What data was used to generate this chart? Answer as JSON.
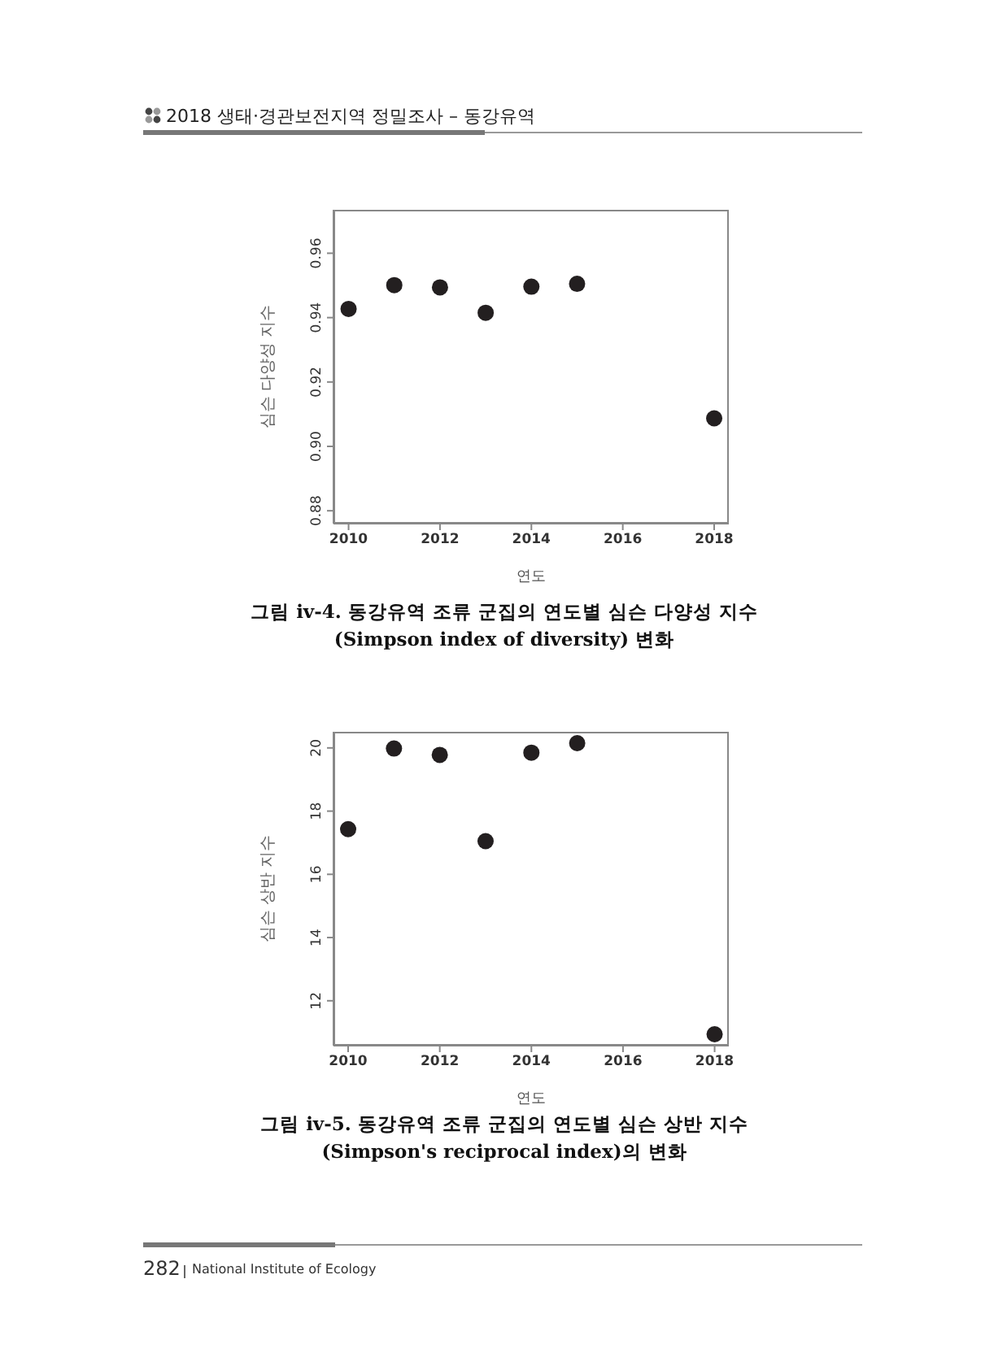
{
  "chart_data": [
    {
      "type": "scatter",
      "title": "그림 iv-4. 동강유역 조류 군집의 연도별 심슨 다양성 지수\n(Simpson index of diversity) 변화",
      "xlabel": "연도",
      "ylabel": "심슨 다양성 지수",
      "annotations": [
        "2018 생태·경관보전지역 정밀조사 – 동강유역"
      ],
      "x": [
        2010,
        2011,
        2012,
        2013,
        2014,
        2015,
        2018
      ],
      "series": [
        {
          "color": "#231f20",
          "values": [
            0.9427,
            0.9501,
            0.9494,
            0.9415,
            0.9496,
            0.9505,
            0.9087
          ]
        }
      ],
      "xlim": [
        2009.67,
        2018.32
      ],
      "xticks": [
        2010,
        2012,
        2014,
        2016,
        2018
      ],
      "ylim": [
        0.876,
        0.9735
      ],
      "yticks": [
        0.88,
        {
          "value": 0.9,
          "label": "0.90"
        },
        0.92,
        0.94,
        0.96
      ],
      "marker": "circle",
      "grid": false,
      "legend": false
    },
    {
      "type": "scatter",
      "title": "그림 iv-5. 동강유역 조류 군집의 연도별 심슨 상반 지수\n(Simpson's reciprocal index)의 변화",
      "xlabel": "연도",
      "ylabel": "심슨 상반 지수",
      "annotations": [
        "282",
        "National Institute of Ecology"
      ],
      "x": [
        2010,
        2011,
        2012,
        2013,
        2014,
        2015,
        2018
      ],
      "series": [
        {
          "color": "#231f20",
          "values": [
            17.43,
            19.98,
            19.78,
            17.05,
            19.85,
            20.15,
            10.94
          ]
        }
      ],
      "xlim": [
        2009.68,
        2018.31
      ],
      "xticks": [
        2010,
        2012,
        2014,
        2016,
        2018
      ],
      "ylim": [
        10.58,
        20.51
      ],
      "yticks": [
        12,
        14,
        16,
        18,
        20
      ],
      "marker": "circle",
      "grid": false,
      "legend": false
    }
  ]
}
